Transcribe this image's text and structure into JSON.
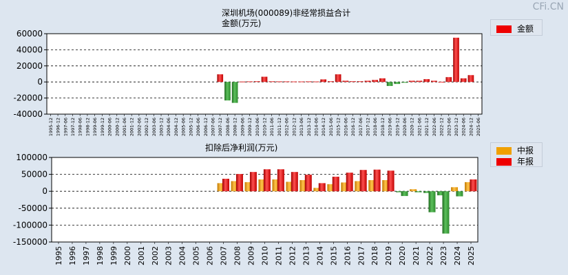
{
  "watermark": "CFi.CN",
  "chart_data": [
    {
      "type": "bar",
      "title": "深圳机场(000089)非经常损益合计",
      "subtitle": "金额(万元)",
      "legend": [
        {
          "name": "金额",
          "color": "#ee0000"
        }
      ],
      "ylim": [
        -40000,
        60000
      ],
      "yticks": [
        60000,
        40000,
        20000,
        0,
        -20000,
        -40000
      ],
      "grid": true,
      "categories": [
        "1995-12",
        "1996-12",
        "1997-06",
        "1997-12",
        "1998-06",
        "1998-12",
        "1999-06",
        "1999-12",
        "2000-06",
        "2000-12",
        "2001-06",
        "2001-12",
        "2002-06",
        "2002-12",
        "2003-06",
        "2003-12",
        "2004-06",
        "2004-12",
        "2005-06",
        "2005-12",
        "2006-06",
        "2006-12",
        "2007-06",
        "2007-12",
        "2008-06",
        "2008-12",
        "2009-06",
        "2009-12",
        "2010-06",
        "2010-12",
        "2011-06",
        "2011-12",
        "2012-06",
        "2012-12",
        "2013-06",
        "2013-12",
        "2014-06",
        "2014-12",
        "2015-06",
        "2015-12",
        "2016-06",
        "2016-12",
        "2017-06",
        "2017-12",
        "2018-06",
        "2018-12",
        "2019-06",
        "2019-12",
        "2020-06",
        "2020-12",
        "2021-06",
        "2021-12",
        "2022-06",
        "2022-12",
        "2023-06",
        "2023-12",
        "2024-06",
        "2024-12",
        "2025-06"
      ],
      "values": [
        null,
        null,
        null,
        null,
        null,
        null,
        null,
        null,
        null,
        null,
        null,
        null,
        null,
        null,
        null,
        null,
        null,
        null,
        null,
        null,
        null,
        null,
        null,
        9500,
        -23000,
        -26000,
        500,
        700,
        900,
        6500,
        800,
        700,
        700,
        600,
        600,
        700,
        600,
        3200,
        900,
        9500,
        1500,
        900,
        900,
        1500,
        2500,
        4500,
        -5000,
        -2500,
        -1000,
        1500,
        1500,
        3500,
        1500,
        200,
        6000,
        55000,
        4500,
        8500,
        null
      ]
    },
    {
      "type": "bar",
      "title": "扣除后净利润(万元)",
      "legend": [
        {
          "name": "中报",
          "color": "#f0a000"
        },
        {
          "name": "年报",
          "color": "#ee0000"
        }
      ],
      "ylim": [
        -150000,
        100000
      ],
      "yticks": [
        100000,
        50000,
        0,
        -50000,
        -100000,
        -150000
      ],
      "grid": true,
      "categories": [
        "1995",
        "1996",
        "1997",
        "1998",
        "1999",
        "2000",
        "2001",
        "2002",
        "2003",
        "2004",
        "2005",
        "2006",
        "2007",
        "2008",
        "2009",
        "2010",
        "2011",
        "2012",
        "2013",
        "2014",
        "2015",
        "2016",
        "2017",
        "2018",
        "2019",
        "2020",
        "2021",
        "2022",
        "2023",
        "2024",
        "2025"
      ],
      "series": [
        {
          "name": "中报",
          "values": [
            null,
            null,
            null,
            null,
            null,
            null,
            null,
            null,
            null,
            null,
            null,
            null,
            24000,
            30000,
            27000,
            35000,
            35000,
            28000,
            33000,
            10000,
            21000,
            26000,
            30000,
            33000,
            33000,
            -3000,
            6000,
            -5000,
            -12000,
            12000,
            27000
          ]
        },
        {
          "name": "年报",
          "values": [
            null,
            null,
            null,
            null,
            null,
            null,
            null,
            null,
            null,
            null,
            null,
            null,
            37000,
            51000,
            57000,
            65000,
            65000,
            57000,
            49000,
            24000,
            43000,
            55000,
            63000,
            64000,
            61000,
            -14000,
            -3000,
            -62000,
            -125000,
            -15000,
            35000
          ]
        }
      ]
    }
  ]
}
